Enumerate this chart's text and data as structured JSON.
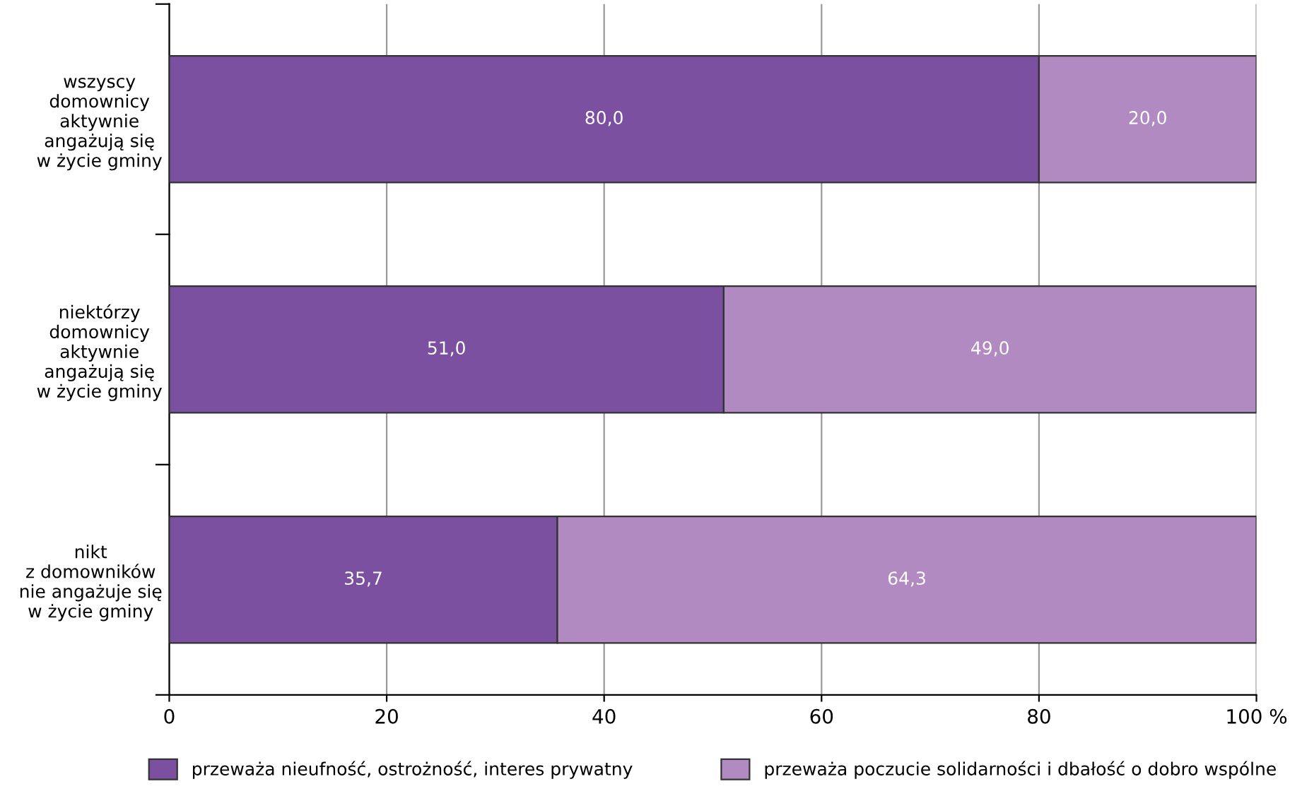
{
  "chart_data": {
    "type": "bar",
    "orientation": "horizontal",
    "stacked": true,
    "categories": [
      "wszyscy\ndomownicy\naktywnie\nangażują się\nw życie gminy",
      "niektórzy\ndomownicy\naktywnie\nangażują się\nw życie gminy",
      "nikt\nz domowników\nnie angażuje się\nw życie gminy"
    ],
    "series": [
      {
        "name": "przeważa nieufność, ostrożność, interes prywatny",
        "color": "#7b50a0",
        "values": [
          80.0,
          51.0,
          35.7
        ],
        "value_labels": [
          "80,0",
          "51,0",
          "35,7"
        ]
      },
      {
        "name": "przeważa poczucie solidarności i dbałość o dobro wspólne",
        "color": "#b08ac0",
        "values": [
          20.0,
          49.0,
          64.3
        ],
        "value_labels": [
          "20,0",
          "49,0",
          "64,3"
        ]
      }
    ],
    "xlim": [
      0,
      100
    ],
    "xticks": [
      0,
      20,
      40,
      60,
      80,
      {
        "value": 100,
        "label": "100 %"
      }
    ],
    "grid": "x",
    "legend": "bottom"
  }
}
